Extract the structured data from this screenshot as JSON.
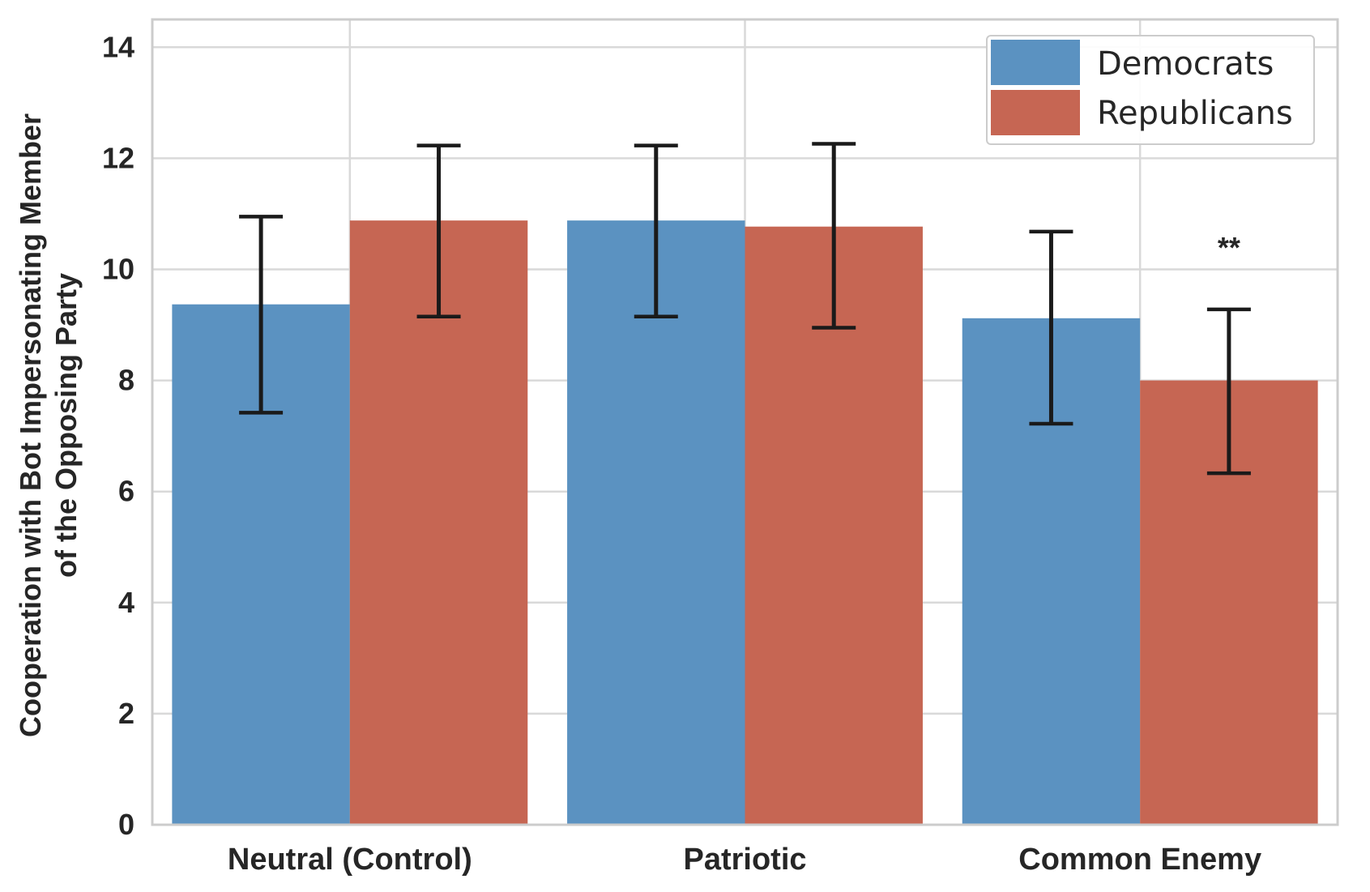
{
  "chart_data": {
    "type": "bar",
    "categories": [
      "Neutral (Control)",
      "Patriotic",
      "Common Enemy"
    ],
    "series": [
      {
        "name": "Democrats",
        "color": "#5b92c1",
        "values": [
          9.37,
          10.88,
          9.12
        ],
        "err_low": [
          7.42,
          9.15,
          7.22
        ],
        "err_high": [
          10.95,
          12.23,
          10.68
        ]
      },
      {
        "name": "Republicans",
        "color": "#c66653",
        "values": [
          10.88,
          10.77,
          8.0
        ],
        "err_low": [
          9.15,
          8.95,
          6.33
        ],
        "err_high": [
          12.23,
          12.26,
          9.28
        ]
      }
    ],
    "annotations": [
      {
        "text": "**",
        "category_index": 2,
        "series_index": 1,
        "y": 10.5
      }
    ],
    "ylabel_line1": "Cooperation with Bot Impersonating Member",
    "ylabel_line2": "of the Opposing Party",
    "xlabel": "",
    "ylim": [
      0,
      14.5
    ],
    "yticks": [
      "0",
      "2",
      "4",
      "6",
      "8",
      "10",
      "12",
      "14"
    ],
    "grid": true,
    "legend_position": "top-right"
  }
}
